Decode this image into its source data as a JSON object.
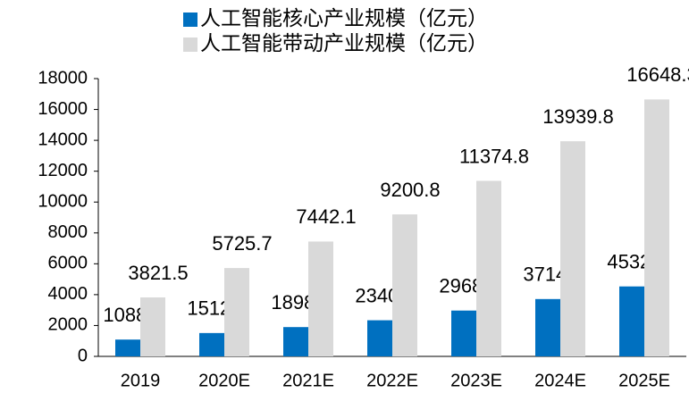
{
  "chart_data": {
    "type": "bar",
    "categories": [
      "2019",
      "2020E",
      "2021E",
      "2022E",
      "2023E",
      "2024E",
      "2025E"
    ],
    "series": [
      {
        "name": "人工智能核心产业规模（亿元）",
        "color": "#0070c0",
        "values": [
          1088.6,
          1512.5,
          1898.1,
          2340.4,
          2968.9,
          3714.6,
          4532.6
        ]
      },
      {
        "name": "人工智能带动产业规模（亿元）",
        "color": "#d9d9d9",
        "values": [
          3821.5,
          5725.7,
          7442.1,
          9200.8,
          11374.8,
          13939.8,
          16648.3
        ]
      }
    ],
    "ylim": [
      0,
      18000
    ],
    "yticks": [
      0,
      2000,
      4000,
      6000,
      8000,
      10000,
      12000,
      14000,
      16000,
      18000
    ],
    "grid": false,
    "legend": "top"
  }
}
